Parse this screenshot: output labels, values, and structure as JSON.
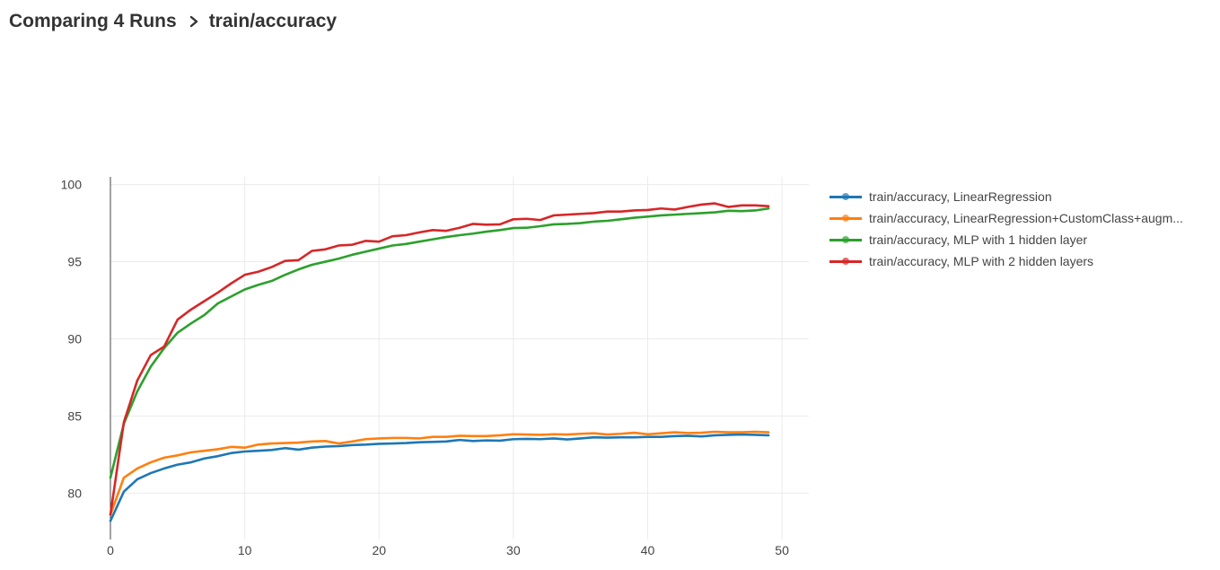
{
  "breadcrumb": {
    "parent": "Comparing 4 Runs",
    "current": "train/accuracy"
  },
  "chart_data": {
    "type": "line",
    "title": "",
    "xlabel": "",
    "ylabel": "",
    "xlim": [
      0,
      52
    ],
    "ylim": [
      77,
      100.5
    ],
    "xticks": [
      0,
      10,
      20,
      30,
      40,
      50
    ],
    "yticks": [
      80,
      85,
      90,
      95,
      100
    ],
    "grid": true,
    "legend_position": "right",
    "x": [
      0,
      1,
      2,
      3,
      4,
      5,
      6,
      7,
      8,
      9,
      10,
      11,
      12,
      13,
      14,
      15,
      16,
      17,
      18,
      19,
      20,
      21,
      22,
      23,
      24,
      25,
      26,
      27,
      28,
      29,
      30,
      31,
      32,
      33,
      34,
      35,
      36,
      37,
      38,
      39,
      40,
      41,
      42,
      43,
      44,
      45,
      46,
      47,
      48,
      49
    ],
    "series": [
      {
        "name": "train/accuracy, LinearRegression",
        "color": "#1f77b4",
        "values": [
          78.2,
          80.1,
          80.9,
          81.3,
          81.6,
          81.85,
          82.0,
          82.25,
          82.4,
          82.6,
          82.7,
          82.75,
          82.8,
          82.92,
          82.82,
          82.95,
          83.02,
          83.05,
          83.12,
          83.15,
          83.2,
          83.22,
          83.25,
          83.3,
          83.32,
          83.35,
          83.45,
          83.38,
          83.42,
          83.4,
          83.5,
          83.52,
          83.5,
          83.55,
          83.48,
          83.55,
          83.62,
          83.6,
          83.62,
          83.62,
          83.65,
          83.65,
          83.7,
          83.72,
          83.68,
          83.75,
          83.78,
          83.8,
          83.78,
          83.75
        ]
      },
      {
        "name": "train/accuracy, LinearRegression+CustomClass+augm...",
        "color": "#ff7f0e",
        "values": [
          78.6,
          81.0,
          81.6,
          82.0,
          82.3,
          82.45,
          82.65,
          82.75,
          82.85,
          83.0,
          82.95,
          83.15,
          83.22,
          83.25,
          83.28,
          83.35,
          83.38,
          83.22,
          83.35,
          83.5,
          83.55,
          83.58,
          83.58,
          83.55,
          83.65,
          83.65,
          83.72,
          83.7,
          83.7,
          83.75,
          83.82,
          83.8,
          83.78,
          83.82,
          83.8,
          83.85,
          83.88,
          83.8,
          83.85,
          83.92,
          83.82,
          83.88,
          83.95,
          83.9,
          83.92,
          83.98,
          83.95,
          83.95,
          83.98,
          83.95
        ]
      },
      {
        "name": "train/accuracy, MLP with 1 hidden layer",
        "color": "#2ca02c",
        "values": [
          81.0,
          84.5,
          86.6,
          88.2,
          89.4,
          90.4,
          91.0,
          91.55,
          92.3,
          92.75,
          93.2,
          93.5,
          93.75,
          94.15,
          94.5,
          94.8,
          95.0,
          95.2,
          95.45,
          95.65,
          95.85,
          96.05,
          96.15,
          96.3,
          96.45,
          96.6,
          96.72,
          96.82,
          96.95,
          97.05,
          97.18,
          97.2,
          97.3,
          97.42,
          97.45,
          97.5,
          97.6,
          97.65,
          97.75,
          97.85,
          97.92,
          98.0,
          98.05,
          98.1,
          98.15,
          98.2,
          98.3,
          98.28,
          98.32,
          98.45
        ]
      },
      {
        "name": "train/accuracy, MLP with 2 hidden layers",
        "color": "#d62728",
        "values": [
          78.6,
          84.6,
          87.3,
          88.95,
          89.5,
          91.25,
          91.9,
          92.45,
          93.0,
          93.6,
          94.15,
          94.35,
          94.65,
          95.05,
          95.1,
          95.7,
          95.8,
          96.05,
          96.1,
          96.35,
          96.3,
          96.65,
          96.72,
          96.9,
          97.05,
          97.0,
          97.2,
          97.45,
          97.4,
          97.42,
          97.75,
          97.78,
          97.7,
          98.0,
          98.05,
          98.1,
          98.15,
          98.25,
          98.25,
          98.32,
          98.35,
          98.45,
          98.38,
          98.55,
          98.7,
          98.78,
          98.55,
          98.65,
          98.65,
          98.6
        ]
      }
    ]
  }
}
